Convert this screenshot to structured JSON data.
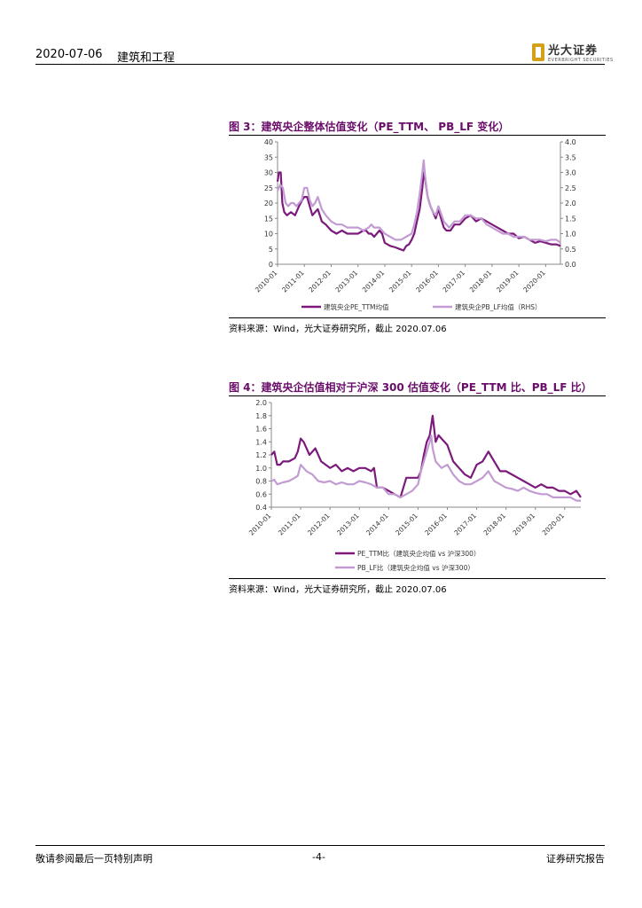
{
  "header": {
    "date": "2020-07-06",
    "sector": "建筑和工程",
    "logo_cn": "光大证券",
    "logo_en": "EVERBRIGHT SECURITIES"
  },
  "figures": [
    {
      "title": "图 3：建筑央企整体估值变化（PE_TTM、 PB_LF 变化）",
      "source": "资料来源：Wind，光大证券研究所，截止 2020.07.06"
    },
    {
      "title": "图 4：建筑央企估值相对于沪深 300 估值变化（PE_TTM 比、PB_LF 比）",
      "source": "资料来源：Wind，光大证券研究所，截止 2020.07.06"
    }
  ],
  "chart_data": [
    {
      "type": "line",
      "x_ticks": [
        "2010-01",
        "2011-01",
        "2012-01",
        "2013-01",
        "2014-01",
        "2015-01",
        "2016-01",
        "2017-01",
        "2018-01",
        "2019-01",
        "2020-01"
      ],
      "y_left_ticks": [
        "40",
        "35",
        "30",
        "25",
        "20",
        "15",
        "10",
        "5",
        "0"
      ],
      "y_right_ticks": [
        "4.0",
        "3.5",
        "3.0",
        "2.5",
        "2.0",
        "1.5",
        "1.0",
        "0.5",
        "0.0"
      ],
      "ylim_left": [
        0,
        40
      ],
      "ylim_right": [
        0,
        4
      ],
      "xlim": [
        2010.0,
        2020.55
      ],
      "legend_position": "bottom",
      "series": [
        {
          "name": "建筑央企PE_TTM均值",
          "axis": "left",
          "color": "#7b1a7b",
          "x": [
            2010.0,
            2010.05,
            2010.12,
            2010.18,
            2010.25,
            2010.35,
            2010.5,
            2010.65,
            2010.8,
            2010.92,
            2011.0,
            2011.1,
            2011.2,
            2011.3,
            2011.4,
            2011.5,
            2011.65,
            2011.8,
            2012.0,
            2012.2,
            2012.4,
            2012.6,
            2012.8,
            2013.0,
            2013.2,
            2013.3,
            2013.4,
            2013.5,
            2013.6,
            2013.7,
            2013.8,
            2013.9,
            2014.0,
            2014.2,
            2014.4,
            2014.55,
            2014.7,
            2014.8,
            2014.9,
            2015.0,
            2015.1,
            2015.2,
            2015.3,
            2015.4,
            2015.45,
            2015.5,
            2015.6,
            2015.7,
            2015.8,
            2015.9,
            2016.0,
            2016.1,
            2016.2,
            2016.3,
            2016.45,
            2016.6,
            2016.8,
            2017.0,
            2017.2,
            2017.4,
            2017.6,
            2017.8,
            2018.0,
            2018.2,
            2018.4,
            2018.6,
            2018.8,
            2019.0,
            2019.2,
            2019.4,
            2019.6,
            2019.8,
            2020.0,
            2020.2,
            2020.4,
            2020.55
          ],
          "y": [
            27,
            30,
            30,
            20,
            17,
            16,
            17,
            16,
            19,
            21,
            22,
            22,
            19,
            16,
            17,
            18,
            14,
            13,
            11,
            10,
            11,
            10,
            10,
            10,
            11,
            11,
            10,
            10,
            9,
            10,
            11,
            10,
            7,
            6,
            5.5,
            5,
            4.5,
            6,
            6.5,
            8,
            10,
            14,
            18,
            25,
            30,
            28,
            22,
            19,
            17,
            15,
            18,
            15,
            12,
            11,
            11,
            13,
            13,
            15,
            16,
            14,
            15,
            14,
            13,
            12,
            11,
            10,
            10,
            8.5,
            9,
            8,
            7,
            7.5,
            7,
            6.5,
            6.5,
            6
          ]
        },
        {
          "name": "建筑央企PB_LF均值（RHS）",
          "axis": "right",
          "color": "#c39bd3",
          "x": [
            2010.0,
            2010.1,
            2010.2,
            2010.3,
            2010.4,
            2010.5,
            2010.6,
            2010.7,
            2010.8,
            2010.9,
            2011.0,
            2011.1,
            2011.2,
            2011.3,
            2011.4,
            2011.5,
            2011.65,
            2011.8,
            2012.0,
            2012.2,
            2012.4,
            2012.6,
            2012.8,
            2013.0,
            2013.2,
            2013.4,
            2013.5,
            2013.6,
            2013.8,
            2014.0,
            2014.2,
            2014.4,
            2014.6,
            2014.8,
            2015.0,
            2015.1,
            2015.2,
            2015.3,
            2015.4,
            2015.45,
            2015.5,
            2015.6,
            2015.7,
            2015.8,
            2015.9,
            2016.0,
            2016.2,
            2016.4,
            2016.6,
            2016.8,
            2017.0,
            2017.2,
            2017.4,
            2017.6,
            2017.8,
            2018.0,
            2018.2,
            2018.4,
            2018.6,
            2018.8,
            2019.0,
            2019.2,
            2019.4,
            2019.6,
            2019.8,
            2020.0,
            2020.2,
            2020.4,
            2020.55
          ],
          "y": [
            2.4,
            2.6,
            2.5,
            2.0,
            1.9,
            2.0,
            2.0,
            1.9,
            2.0,
            2.1,
            2.5,
            2.5,
            2.1,
            1.9,
            2.0,
            2.2,
            1.8,
            1.6,
            1.4,
            1.3,
            1.3,
            1.2,
            1.2,
            1.2,
            1.1,
            1.2,
            1.3,
            1.2,
            1.2,
            1.0,
            0.9,
            0.8,
            0.8,
            0.9,
            1.0,
            1.3,
            1.7,
            2.3,
            3.0,
            3.4,
            2.9,
            2.2,
            1.9,
            1.7,
            1.6,
            1.9,
            1.4,
            1.2,
            1.4,
            1.4,
            1.6,
            1.6,
            1.5,
            1.5,
            1.3,
            1.2,
            1.1,
            1.0,
            1.0,
            0.9,
            0.9,
            0.9,
            0.8,
            0.8,
            0.8,
            0.75,
            0.8,
            0.8,
            0.7
          ]
        }
      ]
    },
    {
      "type": "line",
      "x_ticks": [
        "2010-01",
        "2011-01",
        "2012-01",
        "2013-01",
        "2014-01",
        "2015-01",
        "2016-01",
        "2017-01",
        "2018-01",
        "2019-01",
        "2020-01"
      ],
      "y_ticks": [
        "2.0",
        "1.8",
        "1.6",
        "1.4",
        "1.2",
        "1.0",
        "0.8",
        "0.6",
        "0.4"
      ],
      "ylim": [
        0.4,
        2.0
      ],
      "xlim": [
        2010.0,
        2020.55
      ],
      "legend_position": "bottom",
      "series": [
        {
          "name": "PE_TTM比（建筑央企均值 vs 沪深300）",
          "color": "#7b1a7b",
          "x": [
            2010.0,
            2010.1,
            2010.2,
            2010.3,
            2010.4,
            2010.6,
            2010.8,
            2010.9,
            2011.0,
            2011.1,
            2011.2,
            2011.3,
            2011.4,
            2011.5,
            2011.7,
            2012.0,
            2012.2,
            2012.4,
            2012.6,
            2012.8,
            2013.0,
            2013.2,
            2013.4,
            2013.5,
            2013.6,
            2013.8,
            2014.0,
            2014.2,
            2014.4,
            2014.6,
            2014.8,
            2015.0,
            2015.1,
            2015.2,
            2015.3,
            2015.4,
            2015.5,
            2015.55,
            2015.6,
            2015.7,
            2015.8,
            2016.0,
            2016.2,
            2016.4,
            2016.6,
            2016.8,
            2017.0,
            2017.2,
            2017.4,
            2017.6,
            2017.8,
            2018.0,
            2018.2,
            2018.4,
            2018.6,
            2018.8,
            2019.0,
            2019.2,
            2019.4,
            2019.6,
            2019.8,
            2020.0,
            2020.2,
            2020.4,
            2020.55
          ],
          "y": [
            1.2,
            1.25,
            1.05,
            1.05,
            1.1,
            1.1,
            1.15,
            1.25,
            1.45,
            1.4,
            1.3,
            1.2,
            1.25,
            1.3,
            1.1,
            1.0,
            1.05,
            0.95,
            1.0,
            0.95,
            1.0,
            1.0,
            0.95,
            1.0,
            0.7,
            0.7,
            0.65,
            0.6,
            0.55,
            0.85,
            0.85,
            0.85,
            0.95,
            1.2,
            1.4,
            1.5,
            1.8,
            1.6,
            1.4,
            1.5,
            1.45,
            1.35,
            1.1,
            1.0,
            0.9,
            0.85,
            1.05,
            1.1,
            1.25,
            1.1,
            0.95,
            0.95,
            0.9,
            0.85,
            0.8,
            0.75,
            0.7,
            0.75,
            0.7,
            0.7,
            0.65,
            0.65,
            0.6,
            0.65,
            0.55
          ]
        },
        {
          "name": "PB_LF比（建筑央企均值 vs 沪深300）",
          "color": "#c39bd3",
          "x": [
            2010.0,
            2010.1,
            2010.2,
            2010.4,
            2010.6,
            2010.8,
            2010.9,
            2011.0,
            2011.1,
            2011.2,
            2011.4,
            2011.6,
            2011.8,
            2012.0,
            2012.2,
            2012.4,
            2012.6,
            2012.8,
            2013.0,
            2013.2,
            2013.4,
            2013.6,
            2013.8,
            2014.0,
            2014.2,
            2014.4,
            2014.6,
            2014.8,
            2015.0,
            2015.1,
            2015.2,
            2015.3,
            2015.4,
            2015.45,
            2015.5,
            2015.6,
            2015.7,
            2015.8,
            2016.0,
            2016.2,
            2016.4,
            2016.6,
            2016.8,
            2017.0,
            2017.2,
            2017.4,
            2017.6,
            2017.8,
            2018.0,
            2018.2,
            2018.4,
            2018.6,
            2018.8,
            2019.0,
            2019.2,
            2019.4,
            2019.6,
            2019.8,
            2020.0,
            2020.2,
            2020.4,
            2020.55
          ],
          "y": [
            0.8,
            0.82,
            0.75,
            0.78,
            0.8,
            0.85,
            0.88,
            1.05,
            1.0,
            0.95,
            0.9,
            0.8,
            0.78,
            0.8,
            0.75,
            0.78,
            0.75,
            0.75,
            0.8,
            0.78,
            0.75,
            0.7,
            0.7,
            0.6,
            0.6,
            0.55,
            0.6,
            0.65,
            0.75,
            0.95,
            1.1,
            1.25,
            1.4,
            1.5,
            1.3,
            1.1,
            1.05,
            1.0,
            1.05,
            0.9,
            0.8,
            0.75,
            0.75,
            0.8,
            0.85,
            0.95,
            0.8,
            0.75,
            0.7,
            0.68,
            0.65,
            0.7,
            0.65,
            0.62,
            0.6,
            0.6,
            0.55,
            0.55,
            0.55,
            0.55,
            0.5,
            0.5
          ]
        }
      ]
    }
  ],
  "footer": {
    "disclaimer": "敬请参阅最后一页特别声明",
    "page": "-4-",
    "report_type": "证券研究报告"
  }
}
